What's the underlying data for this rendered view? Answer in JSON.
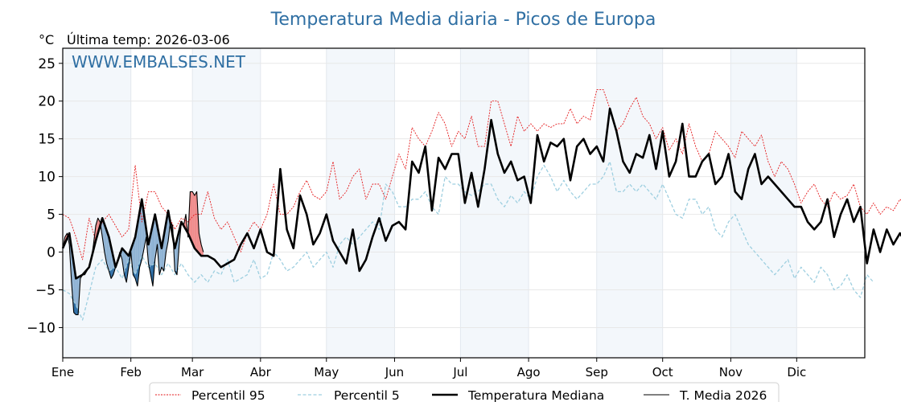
{
  "chart_data": {
    "type": "line",
    "title": "Temperatura Media diaria - Picos de Europa",
    "unit_label": "°C",
    "subtitle": "Última temp: 2026-03-06",
    "watermark": "WWW.EMBALSES.NET",
    "xlabel": "",
    "ylabel": "°C",
    "ylim": [
      -14,
      27
    ],
    "xlim_days": [
      0,
      365
    ],
    "yticks": [
      {
        "value": 25,
        "label": "25"
      },
      {
        "value": 20,
        "label": "20"
      },
      {
        "value": 15,
        "label": "15"
      },
      {
        "value": 10,
        "label": "10"
      },
      {
        "value": 5,
        "label": "5"
      },
      {
        "value": 0,
        "label": "0"
      },
      {
        "value": -5,
        "label": "−5"
      },
      {
        "value": -10,
        "label": "−10"
      }
    ],
    "months": [
      {
        "label": "Ene",
        "day": 0,
        "shaded": true
      },
      {
        "label": "Feb",
        "day": 31,
        "shaded": false
      },
      {
        "label": "Mar",
        "day": 59,
        "shaded": true
      },
      {
        "label": "Abr",
        "day": 90,
        "shaded": false
      },
      {
        "label": "May",
        "day": 120,
        "shaded": true
      },
      {
        "label": "Jun",
        "day": 151,
        "shaded": false
      },
      {
        "label": "Jul",
        "day": 181,
        "shaded": true
      },
      {
        "label": "Ago",
        "day": 212,
        "shaded": false
      },
      {
        "label": "Sep",
        "day": 243,
        "shaded": true
      },
      {
        "label": "Oct",
        "day": 273,
        "shaded": false
      },
      {
        "label": "Nov",
        "day": 304,
        "shaded": true
      },
      {
        "label": "Dic",
        "day": 334,
        "shaded": false
      }
    ],
    "grid": true,
    "legend_position": "bottom-center",
    "series": [
      {
        "name": "Percentil 95",
        "key": "p95",
        "color": "#e41a1c",
        "style": "dotted",
        "step_days": 3,
        "values": [
          5,
          4.5,
          2,
          -1,
          4.5,
          1.5,
          4,
          5,
          3.5,
          2,
          3,
          11.5,
          4,
          8,
          8,
          6,
          5,
          3,
          4.5,
          4,
          5,
          5,
          8,
          4.5,
          3,
          4,
          2,
          0,
          2.5,
          4,
          3,
          5,
          9,
          5,
          5,
          6,
          8,
          9.5,
          7.5,
          7,
          8,
          12,
          7,
          8,
          10,
          11,
          7,
          9,
          9,
          7,
          10,
          13,
          11,
          16.5,
          15,
          14,
          16,
          18.5,
          17,
          14,
          16,
          15,
          18,
          14,
          14,
          20,
          20,
          17,
          14,
          18,
          16,
          17,
          16,
          17,
          16.5,
          17,
          17,
          19,
          17,
          18,
          17.5,
          21.5,
          21.5,
          19,
          16,
          17,
          19,
          20.5,
          18,
          17,
          15,
          16.5,
          13.5,
          15,
          13,
          17,
          14,
          12,
          13,
          16,
          15,
          14,
          12.5,
          16,
          15,
          14,
          15.5,
          12,
          10,
          12,
          11,
          9,
          6.5,
          8,
          9,
          7,
          6,
          8,
          7,
          7.5,
          9,
          6,
          5,
          6.5,
          5,
          6,
          5.5,
          7,
          6,
          6.5
        ]
      },
      {
        "name": "Percentil 5",
        "key": "p5",
        "color": "#9ecfe0",
        "style": "dashed",
        "step_days": 3,
        "values": [
          -5,
          -5.5,
          -7,
          -9,
          -5.5,
          -2,
          -1,
          -2.5,
          -2,
          -3.5,
          -1,
          -3,
          -0.5,
          -2,
          -1.5,
          -3,
          -1.5,
          -3,
          -1.5,
          -3,
          -4,
          -3,
          -4,
          -2.5,
          -3,
          -1,
          -4,
          -3.5,
          -3,
          -1,
          -3.5,
          -3,
          0,
          -1,
          -2.5,
          -2,
          -1,
          0,
          -2,
          -1,
          0,
          -2,
          1,
          2,
          1,
          2,
          3,
          4,
          3,
          9,
          8,
          6,
          6,
          7,
          7,
          8,
          6,
          5,
          10,
          9,
          9,
          8,
          7.5,
          8,
          9,
          9,
          7,
          6,
          7.5,
          6.5,
          8,
          7,
          10,
          11.5,
          10,
          8,
          9.5,
          8,
          7,
          8,
          9,
          9,
          10,
          12,
          8,
          8,
          9,
          8,
          9,
          8,
          7,
          9,
          7,
          5,
          4.5,
          7,
          7,
          5,
          6,
          3,
          2,
          4,
          5,
          3,
          1,
          0,
          -1,
          -2,
          -3,
          -2,
          -1,
          -3.5,
          -2,
          -3,
          -4,
          -2,
          -3,
          -5,
          -4.5,
          -3,
          -5,
          -6,
          -3,
          -4
        ]
      },
      {
        "name": "Temperatura Mediana",
        "key": "median",
        "color": "#000000",
        "style": "solid-thick",
        "step_days": 3,
        "values": [
          0.5,
          2.5,
          -3.5,
          -3,
          -2,
          1.5,
          4.5,
          2,
          -2,
          0.5,
          -0.5,
          2,
          7,
          1,
          5,
          0.5,
          5.5,
          0.5,
          4,
          2.5,
          0.5,
          -0.5,
          -0.5,
          -1,
          -2,
          -1.5,
          -1,
          1,
          2.5,
          0.5,
          3,
          0,
          -0.5,
          11,
          3,
          0.5,
          7.5,
          5,
          1,
          2.5,
          5,
          1.5,
          0,
          -1.5,
          3,
          -2.5,
          -1,
          2,
          4.5,
          1.5,
          3.5,
          4,
          3,
          12,
          10.5,
          14,
          5.5,
          12.5,
          11,
          13,
          13,
          6.5,
          10.5,
          6,
          11,
          17.5,
          13,
          10.5,
          12,
          9.5,
          10,
          6.5,
          15.5,
          12,
          14.5,
          14,
          15,
          9.5,
          14,
          15,
          13,
          14,
          12,
          19,
          16,
          12,
          10.5,
          13,
          12.5,
          15.5,
          11,
          16,
          10,
          12,
          17,
          10,
          10,
          12,
          13,
          9,
          10,
          13,
          8,
          7,
          11,
          13,
          9,
          10,
          9,
          8,
          7,
          6,
          6,
          4,
          3,
          4,
          7,
          2,
          5,
          7,
          4,
          6,
          -1.5,
          3,
          0,
          3,
          1,
          2.5,
          1
        ]
      },
      {
        "name": "T. Media 2026",
        "key": "y2026",
        "color": "#000000",
        "style": "solid-thin",
        "step_days": 1,
        "above_fill": "#f08080",
        "below_fill_dark": "#2e6da4",
        "below_fill_light": "#8fb3d4",
        "values": [
          0.5,
          2,
          2.5,
          1,
          -4,
          -8,
          -8.3,
          -8.3,
          -3.5,
          -3,
          -3,
          -2.5,
          -2,
          -1,
          1,
          3.5,
          4.5,
          4,
          2,
          0,
          -1.5,
          -2.5,
          -3.5,
          -3,
          -2,
          -1,
          0,
          -1,
          -3,
          -4,
          -2,
          0,
          -3,
          -3.5,
          -4.5,
          -2,
          -1,
          0.5,
          2,
          -1.5,
          -3,
          -4.5,
          -1,
          1,
          -3,
          -2,
          -2.5,
          0,
          1.5,
          4,
          3.5,
          -2.5,
          -3,
          1,
          4,
          3.5,
          5,
          2,
          8,
          8,
          7.5,
          8,
          2.5,
          1,
          0
        ]
      }
    ]
  },
  "legend": {
    "items": [
      {
        "label": "Percentil 95",
        "key": "p95"
      },
      {
        "label": "Percentil 5",
        "key": "p5"
      },
      {
        "label": "Temperatura Mediana",
        "key": "median"
      },
      {
        "label": "T. Media 2026",
        "key": "y2026"
      }
    ]
  }
}
